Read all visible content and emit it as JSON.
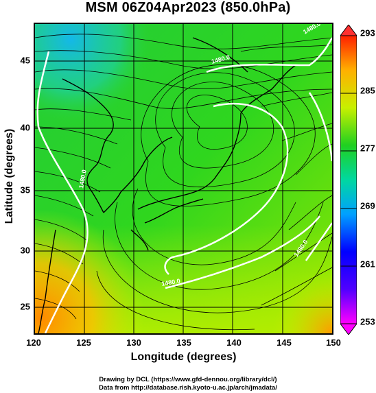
{
  "title": "MSM 06Z04Apr2023 (850.0hPa)",
  "x_axis": {
    "label": "Longitude (degrees)",
    "ticks": [
      "120",
      "125",
      "130",
      "135",
      "140",
      "145",
      "150"
    ],
    "range": [
      120,
      150
    ]
  },
  "y_axis": {
    "label": "Latitude  (degrees)",
    "ticks": [
      "45",
      "40",
      "35",
      "30",
      "25"
    ],
    "range": [
      22.5,
      47.8
    ]
  },
  "colorbar": {
    "labels": [
      "293",
      "285",
      "277",
      "269",
      "261",
      "253"
    ],
    "range": [
      253,
      293
    ],
    "colors": [
      "#ff00ff",
      "#0000ff",
      "#00c8ff",
      "#00d070",
      "#2dd61e",
      "#c8f000",
      "#ffb000",
      "#ff2000"
    ]
  },
  "contour_labels": [
    "1480.0",
    "1480.0",
    "1480.0",
    "1480.0",
    "1480.0"
  ],
  "credits": [
    "Drawing by DCL (https://www.gfd-dennou.org/library/dcl/)",
    "Data from http://database.rish.kyoto-u.ac.jp/arch/jmadata/"
  ]
}
